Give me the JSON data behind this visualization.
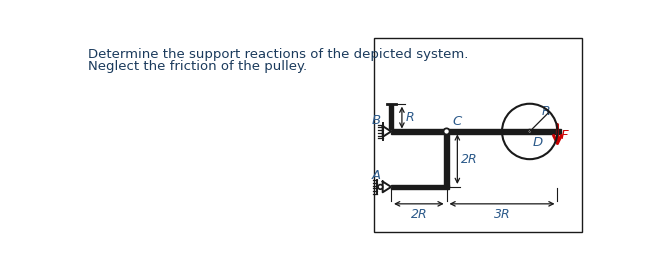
{
  "text_color": "#1a3a5c",
  "line_color": "#1a1a1a",
  "label_color": "#2c5a8a",
  "red_color": "#cc0000",
  "desc_line1": "Determine the support reactions of the depicted system.",
  "desc_line2": "Neglect the friction of the pulley.",
  "label_B": "B",
  "label_A": "A",
  "label_C": "C",
  "label_D": "D",
  "label_R_top": "R",
  "label_2R_vert": "2R",
  "label_2R_horiz": "2R",
  "label_3R_horiz": "3R",
  "label_R_circle": "R",
  "label_F": "F",
  "desc_fontsize": 9.5,
  "label_fontsize": 9
}
